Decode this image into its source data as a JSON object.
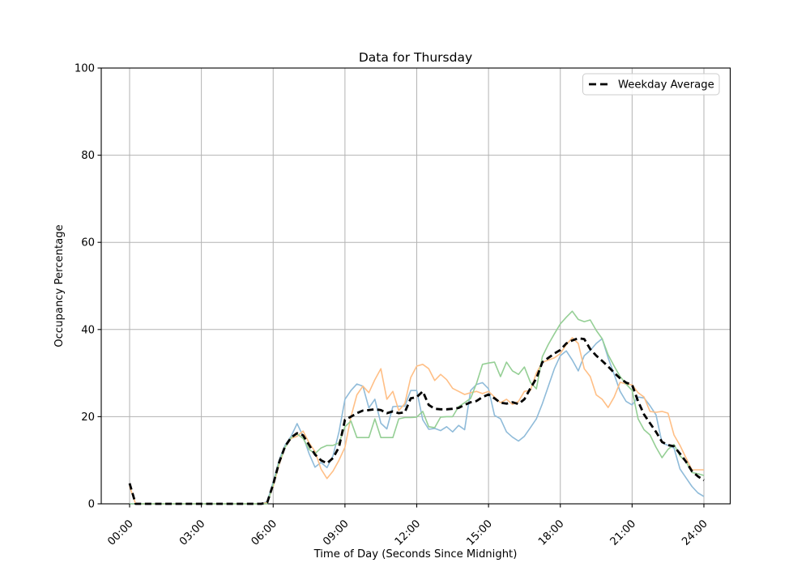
{
  "chart_data": {
    "type": "line",
    "title": "Data for Thursday",
    "xlabel": "Time of Day (Seconds Since Midnight)",
    "ylabel": "Occupancy Percentage",
    "x_tick_hours": [
      0,
      3,
      6,
      9,
      12,
      15,
      18,
      21,
      24
    ],
    "x_tick_labels": [
      "00:00",
      "03:00",
      "06:00",
      "09:00",
      "12:00",
      "15:00",
      "18:00",
      "21:00",
      "24:00"
    ],
    "y_ticks": [
      0,
      20,
      40,
      60,
      80,
      100
    ],
    "ylim": [
      0,
      100
    ],
    "xlim_hours": [
      0,
      24
    ],
    "grid": true,
    "grid_color": "#b3b3b3",
    "background_color": "#ffffff",
    "sample_interval_hours": 0.25,
    "legend": {
      "position": "upper right",
      "entries": [
        {
          "label": "Weekday Average",
          "color": "#000000",
          "dashed": true
        }
      ]
    },
    "series": [
      {
        "name": "day-line-1",
        "color": "#8fbbd9",
        "dashed": false,
        "line_width": 1.6,
        "values": [
          0,
          0,
          0,
          0,
          0,
          0,
          0,
          0,
          0,
          0,
          0,
          0,
          0,
          0,
          0,
          0,
          0,
          0,
          0,
          0,
          0,
          0,
          0,
          0.5,
          5,
          10,
          13.5,
          15.5,
          18.4,
          15.5,
          11.5,
          8.4,
          9.5,
          8.3,
          11,
          16.5,
          24,
          26,
          27.5,
          27,
          22,
          24,
          18.5,
          17.2,
          22.3,
          22.4,
          22.4,
          26,
          26,
          19.3,
          17.1,
          17.3,
          16.8,
          17.7,
          16.5,
          18,
          17,
          26,
          27.4,
          27.8,
          26.4,
          20.3,
          19.5,
          16.5,
          15.3,
          14.4,
          15.5,
          17.5,
          19.5,
          23,
          27,
          31,
          34,
          35.1,
          33,
          30.5,
          34,
          35.2,
          36.8,
          37.9,
          33.5,
          29.7,
          25.8,
          23.5,
          22.7,
          24.5,
          24.3,
          22.5,
          20.4,
          14,
          13.4,
          12.8,
          8,
          6,
          4,
          2.5,
          1.7
        ]
      },
      {
        "name": "day-line-2",
        "color": "#ffbf86",
        "dashed": false,
        "line_width": 1.6,
        "values": [
          4,
          0,
          0,
          0,
          0,
          0,
          0,
          0,
          0,
          0,
          0,
          0,
          0,
          0,
          0,
          0,
          0,
          0,
          0,
          0,
          0,
          0,
          0,
          0.3,
          4,
          9,
          13,
          15,
          15.5,
          16.7,
          14,
          12,
          8,
          5.8,
          7.5,
          10,
          13,
          20,
          25,
          27,
          25.5,
          28.5,
          31,
          24,
          25.8,
          21.4,
          23,
          29,
          31.6,
          32,
          31,
          28.3,
          29.7,
          28.5,
          26.5,
          25.8,
          25.1,
          25.5,
          25.8,
          25.3,
          25.8,
          24.5,
          23.2,
          24,
          22.8,
          23.5,
          25.8,
          26,
          30,
          32.5,
          33,
          33.5,
          34.5,
          36.5,
          38.1,
          36.8,
          31,
          29.2,
          25,
          24,
          22.1,
          24.5,
          27.9,
          27.5,
          27.3,
          25.5,
          24.5,
          21.2,
          21,
          21.2,
          20.8,
          15.8,
          13.4,
          10.6,
          7.8,
          7.8,
          7.8
        ]
      },
      {
        "name": "day-line-3",
        "color": "#95cf95",
        "dashed": false,
        "line_width": 1.6,
        "values": [
          0,
          0,
          0,
          0,
          0,
          0,
          0,
          0,
          0,
          0,
          0,
          0,
          0,
          0,
          0,
          0,
          0,
          0,
          0,
          0,
          0,
          0,
          0,
          0,
          4.5,
          9.5,
          13,
          15.2,
          16,
          15,
          12.5,
          11.5,
          12.8,
          13.4,
          13.4,
          14,
          17.7,
          19,
          15.2,
          15.2,
          15.2,
          19.5,
          15.2,
          15.2,
          15.2,
          19.5,
          19.8,
          19.8,
          19.9,
          21.2,
          17.7,
          17.5,
          19.9,
          20,
          20,
          22.3,
          23.2,
          24.2,
          27.7,
          32,
          32.3,
          32.5,
          29.2,
          32.5,
          30.5,
          29.7,
          31.4,
          27.9,
          26.4,
          33.8,
          36.6,
          39,
          41.3,
          42.8,
          44.2,
          42.3,
          41.8,
          42.2,
          39.8,
          37.9,
          34.2,
          31.6,
          29.2,
          27.5,
          26,
          19.5,
          17,
          15.8,
          13,
          10.6,
          12.5,
          13.6,
          11,
          9.7,
          7.2,
          6.9,
          6.5
        ]
      },
      {
        "name": "weekday-average",
        "color": "#000000",
        "dashed": true,
        "line_width": 2.8,
        "values": [
          4.7,
          0,
          0,
          0,
          0,
          0,
          0,
          0,
          0,
          0,
          0,
          0,
          0,
          0,
          0,
          0,
          0,
          0,
          0,
          0,
          0,
          0,
          0,
          0.3,
          4.5,
          9.5,
          13.2,
          15.2,
          16.2,
          15.7,
          13.5,
          11.3,
          10,
          9.3,
          10.5,
          13,
          19.3,
          20,
          20.8,
          21.4,
          21.5,
          21.7,
          21.5,
          20.8,
          21.2,
          20.8,
          21,
          24.2,
          24.5,
          25.8,
          22.7,
          21.8,
          21.7,
          21.7,
          21.8,
          22,
          22.7,
          23.3,
          23.6,
          24.5,
          25.1,
          24.2,
          23.2,
          23,
          23.3,
          22.9,
          24,
          26.5,
          28.8,
          32.5,
          33.5,
          34.5,
          35.3,
          36.8,
          37.5,
          38,
          37.8,
          35.5,
          34,
          32.8,
          31.5,
          30.1,
          28.8,
          27.8,
          27.3,
          23.5,
          20.5,
          18.5,
          16.5,
          14.2,
          13.5,
          13.2,
          11.5,
          9.7,
          7.5,
          6.3,
          5.4
        ]
      }
    ]
  }
}
